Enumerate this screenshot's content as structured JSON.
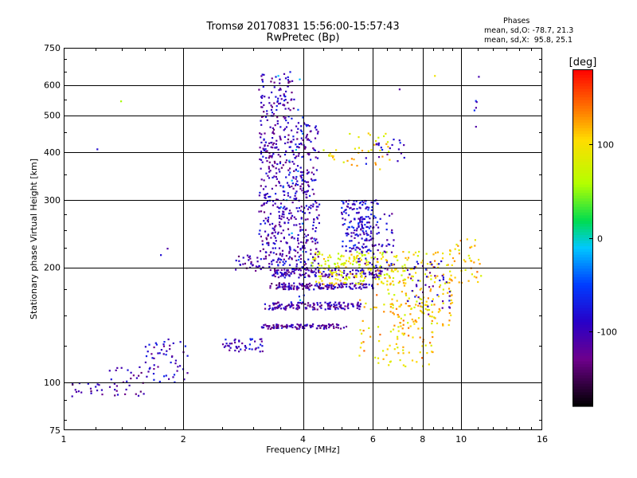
{
  "chart_data": {
    "type": "scatter",
    "title": "Tromsø 20170831 15:56:00-15:57:43",
    "subtitle": "RwPretec (Bp)",
    "xlabel": "Frequency [MHz]",
    "ylabel": "Stationary phase Virtual Height [km]",
    "x_scale": "log",
    "y_scale": "log",
    "xlim": [
      1,
      16
    ],
    "ylim": [
      75,
      750
    ],
    "x_ticks": [
      1,
      2,
      4,
      6,
      8,
      10,
      16
    ],
    "x_tick_labels": [
      "1",
      "2",
      "4",
      "6",
      "8",
      "10",
      "16"
    ],
    "y_ticks": [
      75,
      100,
      200,
      300,
      400,
      500,
      600,
      750
    ],
    "y_tick_labels": [
      "75",
      "100",
      "200",
      "300",
      "400",
      "500",
      "600",
      "750"
    ],
    "grid": true,
    "stats": {
      "heading": "Phases",
      "line_o": "mean, sd,O: -78.7, 21.3",
      "line_x": "mean, sd,X:  95.8, 25.1"
    },
    "colorbar": {
      "label": "[deg]",
      "range": [
        -180,
        180
      ],
      "ticks": [
        100,
        0,
        -100
      ],
      "tick_labels": [
        "100",
        "0",
        "-100"
      ],
      "colormap": "rainbow (black-purple-blue-cyan-green-yellow-orange-red)"
    },
    "point_groups": [
      {
        "f": [
          1.05,
          1.3
        ],
        "h": [
          92,
          100
        ],
        "phase": -115,
        "n": 18
      },
      {
        "f": [
          1.3,
          1.6
        ],
        "h": [
          92,
          110
        ],
        "phase": -105,
        "n": 30
      },
      {
        "f": [
          1.6,
          2.05
        ],
        "h": [
          100,
          130
        ],
        "phase": -95,
        "n": 55
      },
      {
        "f": [
          1.75,
          1.85
        ],
        "h": [
          215,
          230
        ],
        "phase": -100,
        "n": 2
      },
      {
        "f": [
          1.2,
          1.25
        ],
        "h": [
          405,
          415
        ],
        "phase": -85,
        "n": 1
      },
      {
        "f": [
          1.38,
          1.42
        ],
        "h": [
          540,
          550
        ],
        "phase": 80,
        "n": 1
      },
      {
        "f": [
          2.5,
          3.2
        ],
        "h": [
          120,
          130
        ],
        "phase": -95,
        "n": 45
      },
      {
        "f": [
          2.7,
          3.1
        ],
        "h": [
          195,
          215
        ],
        "phase": -110,
        "n": 25
      },
      {
        "f": [
          3.1,
          3.8
        ],
        "h": [
          195,
          650
        ],
        "phase": -105,
        "n": 420
      },
      {
        "f": [
          3.8,
          4.4
        ],
        "h": [
          195,
          480
        ],
        "phase": -100,
        "n": 230
      },
      {
        "f": [
          3.4,
          4.1
        ],
        "h": [
          160,
          650
        ],
        "phase": -40,
        "n": 35
      },
      {
        "f": [
          3.1,
          5.2
        ],
        "h": [
          138,
          142
        ],
        "phase": -110,
        "n": 110
      },
      {
        "f": [
          3.2,
          5.6
        ],
        "h": [
          155,
          162
        ],
        "phase": -110,
        "n": 140
      },
      {
        "f": [
          3.3,
          6.0
        ],
        "h": [
          175,
          182
        ],
        "phase": -110,
        "n": 150
      },
      {
        "f": [
          3.3,
          6.3
        ],
        "h": [
          188,
          198
        ],
        "phase": -105,
        "n": 150
      },
      {
        "f": [
          4.2,
          6.5
        ],
        "h": [
          200,
          220
        ],
        "phase": 85,
        "n": 90
      },
      {
        "f": [
          4.3,
          7.2
        ],
        "h": [
          180,
          200
        ],
        "phase": 95,
        "n": 100
      },
      {
        "f": [
          5.0,
          6.2
        ],
        "h": [
          220,
          300
        ],
        "phase": -85,
        "n": 160
      },
      {
        "f": [
          5.5,
          6.8
        ],
        "h": [
          195,
          280
        ],
        "phase": -100,
        "n": 70
      },
      {
        "f": [
          4.5,
          6.8
        ],
        "h": [
          360,
          450
        ],
        "phase": 100,
        "n": 40
      },
      {
        "f": [
          5.7,
          7.2
        ],
        "h": [
          370,
          440
        ],
        "phase": -95,
        "n": 20
      },
      {
        "f": [
          5.5,
          8.5
        ],
        "h": [
          110,
          170
        ],
        "phase": 110,
        "n": 110
      },
      {
        "f": [
          6.5,
          9.5
        ],
        "h": [
          140,
          220
        ],
        "phase": 100,
        "n": 160
      },
      {
        "f": [
          7.3,
          9.5
        ],
        "h": [
          150,
          210
        ],
        "phase": -100,
        "n": 45
      },
      {
        "f": [
          9.2,
          11.5
        ],
        "h": [
          180,
          240
        ],
        "phase": 110,
        "n": 40
      },
      {
        "f": [
          10.8,
          11.1
        ],
        "h": [
          450,
          640
        ],
        "phase": -90,
        "n": 6
      },
      {
        "f": [
          6.8,
          7.0
        ],
        "h": [
          580,
          590
        ],
        "phase": -105,
        "n": 1
      },
      {
        "f": [
          8.4,
          8.6
        ],
        "h": [
          630,
          640
        ],
        "phase": 100,
        "n": 1
      }
    ]
  }
}
